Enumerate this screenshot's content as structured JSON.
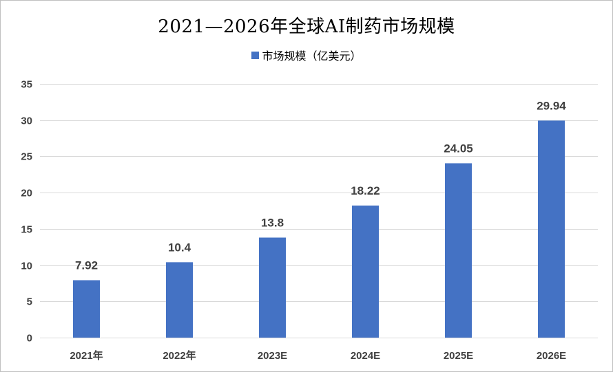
{
  "chart_data": {
    "type": "bar",
    "title": "2021—2026年全球AI制药市场规模",
    "categories": [
      "2021年",
      "2022年",
      "2023E",
      "2024E",
      "2025E",
      "2026E"
    ],
    "series": [
      {
        "name": "市场规模（亿美元）",
        "values": [
          7.92,
          10.4,
          13.8,
          18.22,
          24.05,
          29.94
        ],
        "data_labels": [
          "7.92",
          "10.4",
          "13.8",
          "18.22",
          "24.05",
          "29.94"
        ],
        "color": "#4472C4"
      }
    ],
    "ylim": [
      0,
      35
    ],
    "yticks": [
      0,
      5,
      10,
      15,
      20,
      25,
      30,
      35
    ],
    "grid": true,
    "legend": "top-center",
    "xlabel": "",
    "ylabel": ""
  },
  "colors": {
    "bar": "#4472C4",
    "grid": "#d9d9d9",
    "tick_text": "#404040"
  }
}
